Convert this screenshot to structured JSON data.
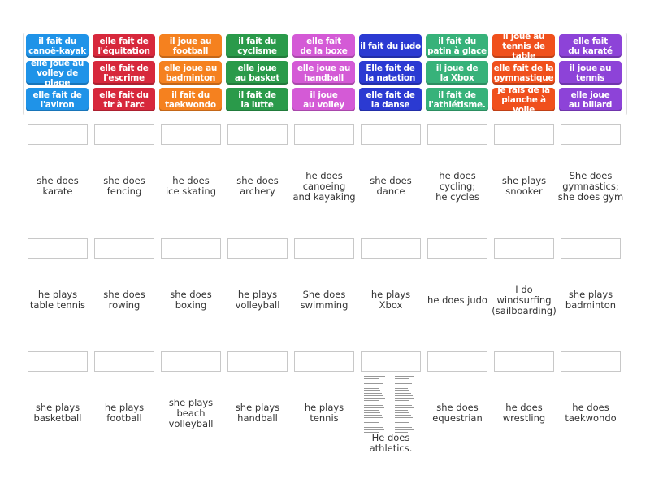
{
  "tiles": [
    [
      "il fait du\ncanoë-kayak",
      "elle fait de\nl'équitation",
      "il joue au\nfootball",
      "il fait du\ncyclisme",
      "elle fait\nde la boxe",
      "il fait du judo",
      "il fait du\npatin à glace",
      "il joue au\ntennis de table",
      "elle fait\ndu karaté"
    ],
    [
      "elle joue au\nvolley de plage",
      "elle fait de\nl'escrime",
      "elle joue au\nbadminton",
      "elle joue\nau basket",
      "elle joue au\nhandball",
      "Elle fait de\nla natation",
      "il joue de\nla Xbox",
      "elle fait de la\ngymnastique",
      "il joue au\ntennis"
    ],
    [
      "elle fait de\nl'aviron",
      "elle fait du\ntir à l'arc",
      "il fait du\ntaekwondo",
      "il fait de\nla lutte",
      "il joue\nau volley",
      "elle fait de\nla danse",
      "il fait de\nl'athlétisme.",
      "je fais de la\nplanche à voile",
      "elle joue\nau billard"
    ]
  ],
  "answers": [
    [
      "she does\nkarate",
      "she does\nfencing",
      "he does\nice skating",
      "she does\narchery",
      "he does\ncanoeing\nand kayaking",
      "she does\ndance",
      "he does\ncycling;\nhe cycles",
      "she plays\nsnooker",
      "She does\ngymnastics;\nshe does gym"
    ],
    [
      "he plays\ntable tennis",
      "she does\nrowing",
      "she does\nboxing",
      "he plays\nvolleyball",
      "She does\nswimming",
      "he plays\nXbox",
      "he does judo",
      "I do\nwindsurfing\n(sailboarding)",
      "she plays\nbadminton"
    ],
    [
      "she plays\nbasketball",
      "he plays\nfootball",
      "she plays\nbeach\nvolleyball",
      "she plays\nhandball",
      "he plays\ntennis",
      "He does\nathletics.",
      "she does\nequestrian",
      "he does\nwrestling",
      "he does\ntaekwondo"
    ]
  ]
}
